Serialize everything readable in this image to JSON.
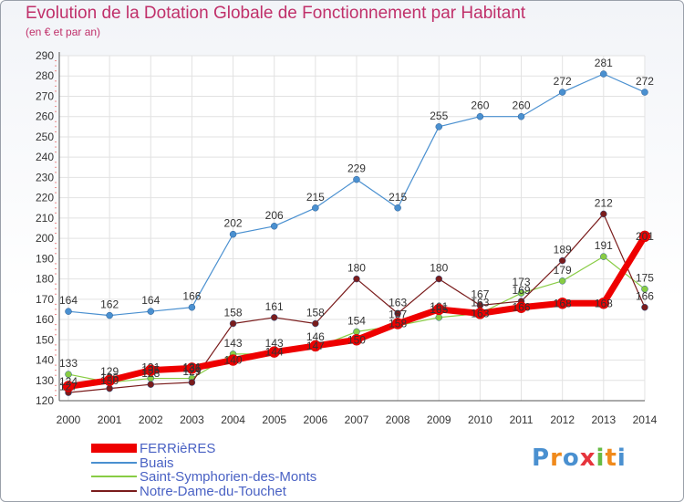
{
  "chart_data": {
    "type": "line",
    "title": "Evolution de la Dotation Globale de Fonctionnement par Habitant",
    "subtitle": "(en € et par an)",
    "x": [
      "2000",
      "2001",
      "2002",
      "2003",
      "2004",
      "2005",
      "2006",
      "2007",
      "2008",
      "2009",
      "2010",
      "2011",
      "2012",
      "2013",
      "2014"
    ],
    "ylim": [
      120,
      290
    ],
    "yticks": [
      120,
      130,
      140,
      150,
      160,
      170,
      180,
      190,
      200,
      210,
      220,
      230,
      240,
      250,
      260,
      270,
      280,
      290
    ],
    "series": [
      {
        "name": "FERRièRES",
        "color": "#ee0000",
        "width": 7,
        "marker": 6,
        "values": [
          127,
          130,
          135,
          136,
          140,
          144,
          147,
          150,
          158,
          165,
          163,
          166,
          168,
          168,
          201
        ],
        "labels": [
          "127",
          "130",
          "135",
          "136",
          "140",
          "144",
          "147",
          "150",
          "158",
          "165",
          "163",
          "166",
          "168",
          "168",
          "201"
        ]
      },
      {
        "name": "Buais",
        "color": "#4a90d0",
        "width": 1.2,
        "marker": 3.5,
        "values": [
          164,
          162,
          164,
          166,
          202,
          206,
          215,
          229,
          215,
          255,
          260,
          260,
          272,
          281,
          272
        ],
        "labels": [
          "164",
          "162",
          "164",
          "166",
          "202",
          "206",
          "215",
          "229",
          "215",
          "255",
          "260",
          "260",
          "272",
          "281",
          "272"
        ]
      },
      {
        "name": "Saint-Symphorien-des-Monts",
        "color": "#88cc44",
        "width": 1.2,
        "marker": 3.5,
        "values": [
          133,
          129,
          131,
          131,
          143,
          143,
          146,
          154,
          157,
          161,
          163,
          173,
          179,
          191,
          175
        ],
        "labels": [
          "133",
          "129",
          "131",
          "131",
          "143",
          "143",
          "146",
          "154",
          "157",
          "161",
          "163",
          "173",
          "179",
          "191",
          "175"
        ]
      },
      {
        "name": "Notre-Dame-du-Touchet",
        "color": "#7a1c1c",
        "width": 1.2,
        "marker": 3.5,
        "values": [
          124,
          126,
          128,
          129,
          158,
          161,
          158,
          180,
          163,
          180,
          167,
          169,
          189,
          212,
          166
        ],
        "labels": [
          "124",
          "126",
          "128",
          "129",
          "158",
          "161",
          "158",
          "180",
          "163",
          "180",
          "167",
          "169",
          "189",
          "212",
          "166"
        ]
      }
    ]
  },
  "branding": {
    "logo_letters": [
      "P",
      "r",
      "o",
      "x",
      "i",
      "t",
      "i"
    ],
    "logo_colors": [
      "#4a90d0",
      "#f08a1c",
      "#4a90d0",
      "#e6343c",
      "#66bb44",
      "#f08a1c",
      "#4a90d0"
    ]
  }
}
